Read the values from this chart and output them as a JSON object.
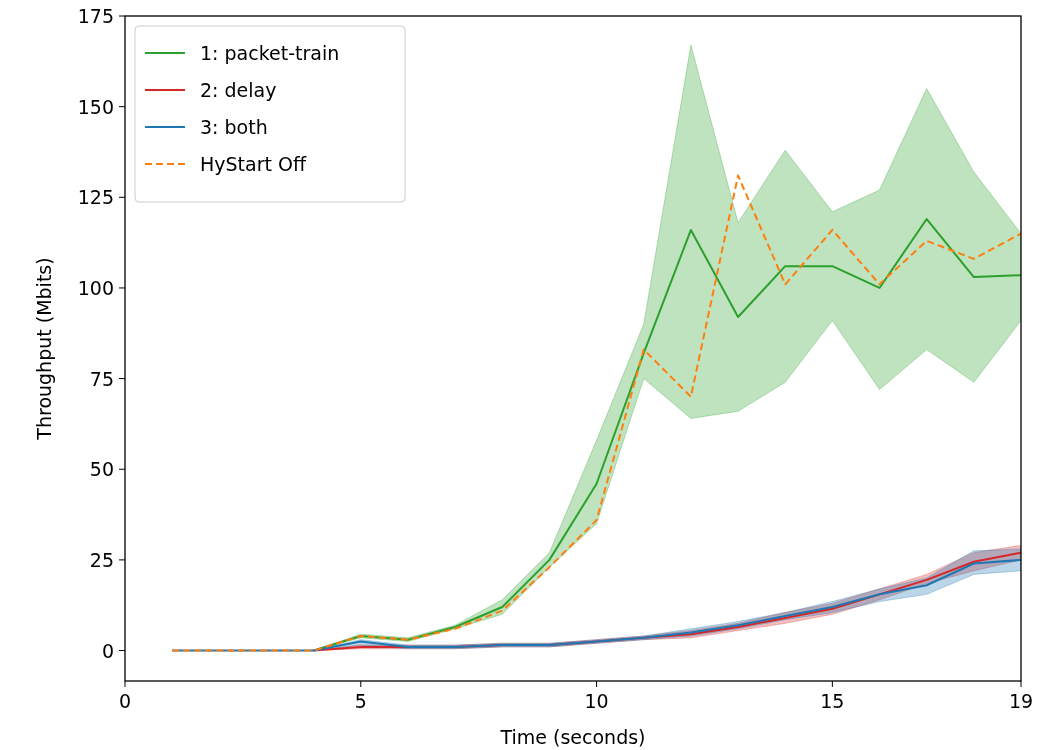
{
  "chart_data": {
    "type": "line",
    "xlabel": "Time (seconds)",
    "ylabel": "Throughput (Mbits)",
    "x": [
      1,
      2,
      3,
      4,
      5,
      6,
      7,
      8,
      9,
      10,
      11,
      12,
      13,
      14,
      15,
      16,
      17,
      18,
      19
    ],
    "xlim": [
      0,
      19
    ],
    "xticks": [
      0,
      5,
      10,
      15,
      19
    ],
    "ylim": [
      -8.4,
      175
    ],
    "yticks": [
      0,
      25,
      50,
      75,
      100,
      125,
      150,
      175
    ],
    "legend": "top left",
    "grid": false,
    "series": [
      {
        "name": "1: packet-train",
        "color": "#2ca02c",
        "values": [
          null,
          null,
          null,
          0,
          4,
          3,
          6.5,
          12,
          25,
          46,
          82,
          116,
          92,
          106,
          106,
          100,
          119,
          103,
          103.5
        ],
        "lower": [
          0,
          0,
          0,
          0,
          3.5,
          2.5,
          6,
          10,
          23,
          35,
          75,
          64,
          66,
          74,
          91,
          72,
          83,
          74,
          91
        ],
        "upper": [
          0,
          0,
          0,
          0,
          4.5,
          3.5,
          7,
          14,
          27,
          58,
          90,
          167,
          118,
          138,
          121,
          127,
          155,
          132,
          115
        ]
      },
      {
        "name": "2: delay",
        "color": "#d62728",
        "values": [
          null,
          null,
          null,
          0,
          1,
          1,
          1,
          1.5,
          1.5,
          2.5,
          3.5,
          4.5,
          6.5,
          9,
          11.5,
          15.5,
          19.5,
          24.5,
          27
        ],
        "lower": [
          0,
          0,
          0,
          0,
          0.5,
          0.5,
          0.5,
          1,
          1,
          2,
          3,
          3.5,
          5.5,
          7.5,
          10,
          14,
          18.5,
          22,
          25
        ],
        "upper": [
          0,
          0,
          0,
          0,
          1.5,
          1.5,
          1.5,
          2,
          2,
          3,
          4,
          5.5,
          7.5,
          10.5,
          13,
          17,
          21,
          27,
          29
        ]
      },
      {
        "name": "3: both",
        "color": "#1f77b4",
        "values": [
          0,
          0,
          0,
          0,
          2.5,
          1,
          1,
          1.5,
          1.5,
          2.5,
          3.5,
          5,
          7,
          9.5,
          12,
          15.5,
          18,
          24,
          25
        ],
        "lower": [
          0,
          0,
          0,
          0,
          1.5,
          0.5,
          0.5,
          1,
          1,
          2,
          3,
          4,
          6,
          8.5,
          10.5,
          13.5,
          15.5,
          21,
          22
        ],
        "upper": [
          0,
          0,
          0,
          0,
          3,
          1.5,
          1.5,
          2,
          2,
          3,
          4,
          6,
          8,
          10.5,
          13.5,
          17,
          20,
          27.5,
          28
        ]
      },
      {
        "name": "HyStart Off",
        "color": "#ff7f0e",
        "line_style": "dashed",
        "values": [
          0,
          0,
          0,
          0,
          4,
          3,
          6,
          11,
          23,
          36,
          83,
          70,
          131,
          101,
          116,
          101,
          113,
          108,
          115
        ]
      }
    ]
  }
}
